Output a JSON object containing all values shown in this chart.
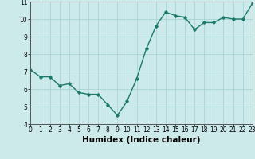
{
  "x": [
    0,
    1,
    2,
    3,
    4,
    5,
    6,
    7,
    8,
    9,
    10,
    11,
    12,
    13,
    14,
    15,
    16,
    17,
    18,
    19,
    20,
    21,
    22,
    23
  ],
  "y": [
    7.1,
    6.7,
    6.7,
    6.2,
    6.3,
    5.8,
    5.7,
    5.7,
    5.1,
    4.5,
    5.3,
    6.6,
    8.3,
    9.6,
    10.4,
    10.2,
    10.1,
    9.4,
    9.8,
    9.8,
    10.1,
    10.0,
    10.0,
    10.9
  ],
  "xlabel": "Humidex (Indice chaleur)",
  "line_color": "#1a7a6a",
  "marker": "D",
  "marker_size": 1.8,
  "background_color": "#cceaea",
  "grid_color": "#aad4d4",
  "xlim": [
    0,
    23
  ],
  "ylim": [
    4,
    11
  ],
  "yticks": [
    4,
    5,
    6,
    7,
    8,
    9,
    10,
    11
  ],
  "xticks": [
    0,
    1,
    2,
    3,
    4,
    5,
    6,
    7,
    8,
    9,
    10,
    11,
    12,
    13,
    14,
    15,
    16,
    17,
    18,
    19,
    20,
    21,
    22,
    23
  ],
  "xtick_labels": [
    "0",
    "1",
    "2",
    "3",
    "4",
    "5",
    "6",
    "7",
    "8",
    "9",
    "10",
    "11",
    "12",
    "13",
    "14",
    "15",
    "16",
    "17",
    "18",
    "19",
    "20",
    "21",
    "22",
    "23"
  ],
  "tick_fontsize": 5.5,
  "xlabel_fontsize": 7.5,
  "linewidth": 1.0
}
